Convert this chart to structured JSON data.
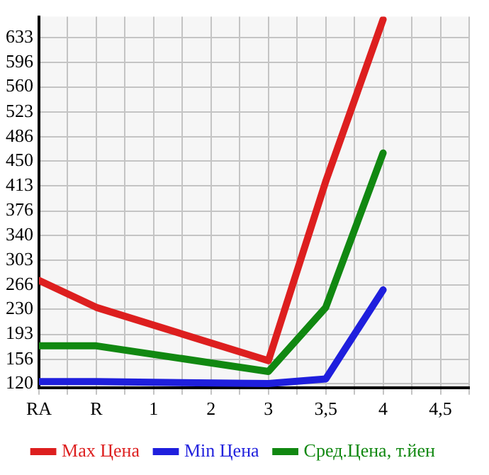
{
  "chart_data": {
    "type": "line",
    "categories": [
      "RA",
      "R",
      "1",
      "2",
      "3",
      "3,5",
      "4",
      "4,5"
    ],
    "series": [
      {
        "name": "Max Цена",
        "color": "#dd1f1f",
        "values": [
          273,
          233,
          null,
          null,
          154,
          420,
          660,
          null
        ]
      },
      {
        "name": "Min Цена",
        "color": "#1f1fdd",
        "values": [
          123,
          123,
          null,
          null,
          120,
          127,
          259,
          null
        ]
      },
      {
        "name": "Сред.Цена, т.йен",
        "color": "#118811",
        "values": [
          176,
          176,
          null,
          null,
          138,
          233,
          462,
          null
        ]
      }
    ],
    "ylim": [
      114,
      664
    ],
    "yticks": [
      120,
      156,
      193,
      230,
      266,
      303,
      340,
      376,
      413,
      450,
      486,
      523,
      560,
      596,
      633
    ],
    "grid": true,
    "legend": "bottom",
    "marker": "none",
    "line_style": "solid"
  }
}
